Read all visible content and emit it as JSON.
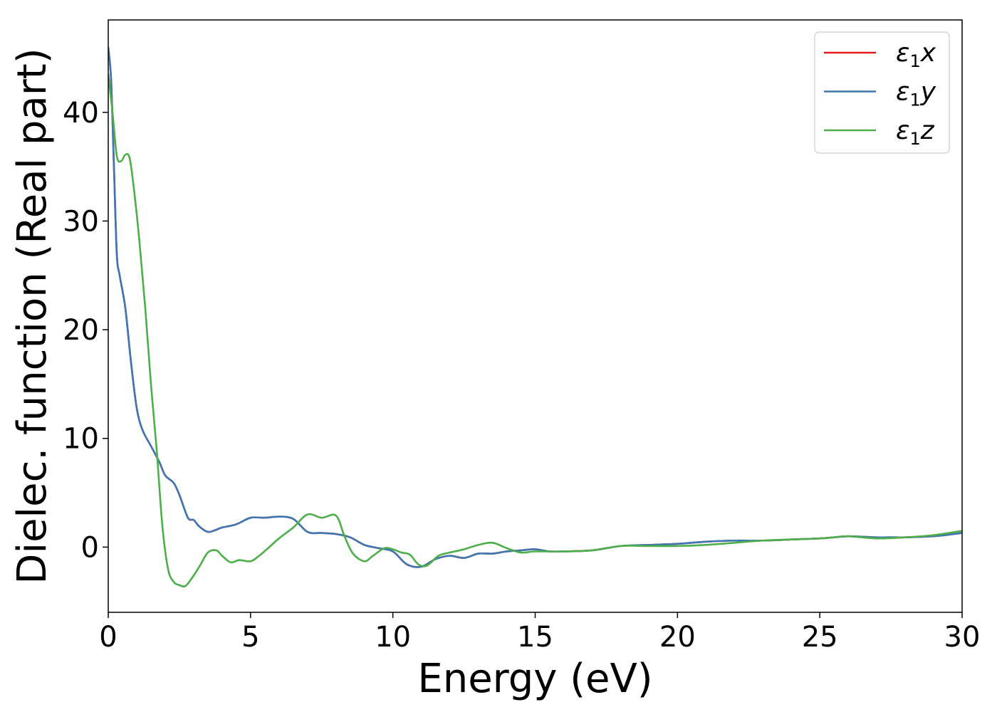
{
  "chart_data": {
    "type": "line",
    "xlabel": "Energy (eV)",
    "ylabel": "Dielec. function (Real part)",
    "xlim": [
      0,
      30
    ],
    "ylim": [
      -6,
      48.5
    ],
    "xticks": [
      0,
      5,
      10,
      15,
      20,
      25,
      30
    ],
    "yticks": [
      0,
      10,
      20,
      30,
      40
    ],
    "grid": false,
    "legend_position": "top-right",
    "series": [
      {
        "name": "ε₁x",
        "legend_base": "ε",
        "legend_sub": "1",
        "legend_tail": "x",
        "color": "#e41a1c",
        "x": [
          0,
          0.1,
          0.2,
          0.3,
          0.4,
          0.6,
          0.8,
          1.0,
          1.2,
          1.5,
          1.8,
          2.0,
          2.3,
          2.5,
          2.8,
          3.0,
          3.2,
          3.5,
          3.8,
          4.0,
          4.5,
          5.0,
          5.5,
          6.0,
          6.5,
          7.0,
          7.5,
          8.0,
          8.5,
          9.0,
          9.5,
          10.0,
          10.5,
          11.0,
          11.5,
          12.0,
          12.5,
          13.0,
          13.5,
          14.0,
          14.5,
          15.0,
          15.5,
          16.0,
          17.0,
          18.0,
          19.0,
          20.0,
          21.0,
          22.0,
          23.0,
          24.0,
          25.0,
          25.5,
          26.0,
          27.0,
          27.5,
          28.0,
          29.0,
          30.0
        ],
        "y": [
          46,
          43,
          35,
          27,
          25,
          22,
          17,
          12.8,
          10.8,
          9.3,
          7.8,
          6.6,
          5.9,
          4.8,
          2.7,
          2.5,
          1.9,
          1.4,
          1.6,
          1.8,
          2.1,
          2.7,
          2.7,
          2.8,
          2.6,
          1.4,
          1.3,
          1.2,
          0.9,
          0.2,
          -0.1,
          -0.4,
          -1.6,
          -1.8,
          -1.1,
          -0.8,
          -1.0,
          -0.6,
          -0.6,
          -0.4,
          -0.3,
          -0.2,
          -0.4,
          -0.4,
          -0.3,
          0.1,
          0.2,
          0.3,
          0.5,
          0.6,
          0.6,
          0.7,
          0.8,
          0.9,
          1.0,
          0.9,
          0.9,
          0.9,
          1.0,
          1.3
        ]
      },
      {
        "name": "ε₁y",
        "legend_base": "ε",
        "legend_sub": "1",
        "legend_tail": "y",
        "color": "#3d78b4",
        "x": [
          0,
          0.1,
          0.2,
          0.3,
          0.4,
          0.6,
          0.8,
          1.0,
          1.2,
          1.5,
          1.8,
          2.0,
          2.3,
          2.5,
          2.8,
          3.0,
          3.2,
          3.5,
          3.8,
          4.0,
          4.5,
          5.0,
          5.5,
          6.0,
          6.5,
          7.0,
          7.5,
          8.0,
          8.5,
          9.0,
          9.5,
          10.0,
          10.5,
          11.0,
          11.5,
          12.0,
          12.5,
          13.0,
          13.5,
          14.0,
          14.5,
          15.0,
          15.5,
          16.0,
          17.0,
          18.0,
          19.0,
          20.0,
          21.0,
          22.0,
          23.0,
          24.0,
          25.0,
          25.5,
          26.0,
          27.0,
          27.5,
          28.0,
          29.0,
          30.0
        ],
        "y": [
          46,
          43,
          35,
          27,
          25,
          22,
          17,
          12.8,
          10.8,
          9.3,
          7.8,
          6.6,
          5.9,
          4.8,
          2.7,
          2.5,
          1.9,
          1.4,
          1.6,
          1.8,
          2.1,
          2.7,
          2.7,
          2.8,
          2.6,
          1.4,
          1.3,
          1.2,
          0.9,
          0.2,
          -0.1,
          -0.4,
          -1.6,
          -1.8,
          -1.1,
          -0.8,
          -1.0,
          -0.6,
          -0.6,
          -0.4,
          -0.3,
          -0.2,
          -0.4,
          -0.4,
          -0.3,
          0.1,
          0.2,
          0.3,
          0.5,
          0.6,
          0.6,
          0.7,
          0.8,
          0.9,
          1.0,
          0.9,
          0.9,
          0.9,
          1.0,
          1.3
        ]
      },
      {
        "name": "ε₁z",
        "legend_base": "ε",
        "legend_sub": "1",
        "legend_tail": "z",
        "color": "#4daf4a",
        "x": [
          0,
          0.15,
          0.3,
          0.45,
          0.6,
          0.75,
          0.9,
          1.1,
          1.3,
          1.5,
          1.7,
          1.9,
          2.1,
          2.3,
          2.5,
          2.7,
          2.9,
          3.2,
          3.5,
          3.8,
          4.0,
          4.3,
          4.6,
          5.0,
          5.3,
          5.7,
          6.0,
          6.5,
          7.0,
          7.5,
          8.0,
          8.3,
          8.6,
          9.0,
          9.3,
          9.7,
          10.0,
          10.3,
          10.6,
          10.9,
          11.2,
          11.6,
          12.0,
          12.5,
          13.0,
          13.5,
          14.0,
          14.5,
          15.0,
          16.0,
          17.0,
          18.0,
          19.0,
          20.0,
          21.0,
          22.0,
          23.0,
          24.0,
          25.0,
          25.5,
          26.0,
          27.0,
          28.0,
          29.0,
          30.0
        ],
        "y": [
          43.5,
          40,
          36,
          35.5,
          36.1,
          35.8,
          33,
          28,
          22,
          15,
          9,
          2,
          -2,
          -3.2,
          -3.5,
          -3.6,
          -3,
          -1.8,
          -0.5,
          -0.3,
          -0.8,
          -1.4,
          -1.2,
          -1.3,
          -0.8,
          0.1,
          0.8,
          1.8,
          3.0,
          2.7,
          2.9,
          1.0,
          -0.6,
          -1.3,
          -0.8,
          -0.1,
          -0.2,
          -0.5,
          -0.7,
          -1.6,
          -1.7,
          -0.8,
          -0.5,
          -0.2,
          0.2,
          0.4,
          -0.1,
          -0.5,
          -0.4,
          -0.4,
          -0.3,
          0.1,
          0.1,
          0.1,
          0.2,
          0.4,
          0.6,
          0.7,
          0.8,
          0.9,
          1.0,
          0.8,
          0.9,
          1.1,
          1.5
        ]
      }
    ]
  }
}
